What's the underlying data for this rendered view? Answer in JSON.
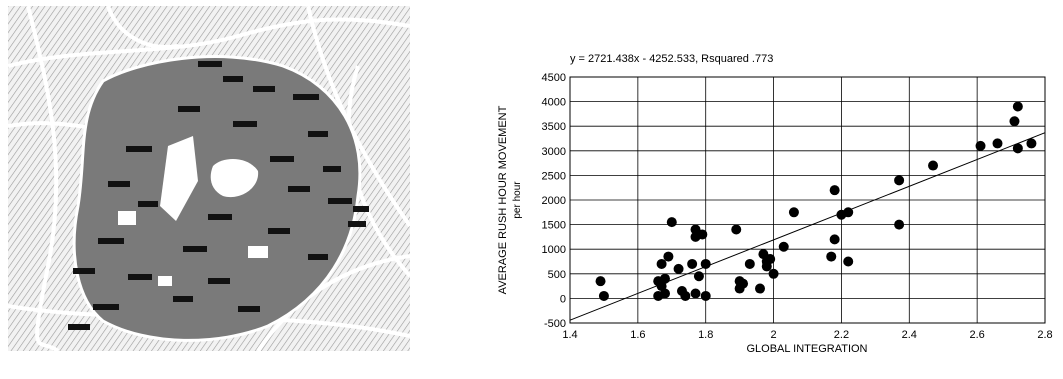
{
  "map": {
    "figure_name": "street network map",
    "labels": [
      "x",
      "x",
      "x",
      "x",
      "x",
      "x",
      "x",
      "x"
    ]
  },
  "chart_data": {
    "type": "scatter",
    "title": "y = 2721.438x - 4252.533, Rsquared .773",
    "xlabel": "GLOBAL INTEGRATION",
    "ylabel": "AVERAGE RUSH HOUR MOVEMENT",
    "ylabel_sub": "per hour",
    "xlim": [
      1.4,
      2.8
    ],
    "ylim": [
      -500,
      4500
    ],
    "xticks": [
      1.4,
      1.6,
      1.8,
      2,
      2.2,
      2.4,
      2.6,
      2.8
    ],
    "yticks": [
      -500,
      0,
      500,
      1000,
      1500,
      2000,
      2500,
      3000,
      3500,
      4000,
      4500
    ],
    "grid": true,
    "trendline": {
      "slope": 2721.438,
      "intercept": -4252.533
    },
    "points": [
      [
        1.49,
        350
      ],
      [
        1.5,
        50
      ],
      [
        1.66,
        350
      ],
      [
        1.66,
        50
      ],
      [
        1.67,
        250
      ],
      [
        1.67,
        700
      ],
      [
        1.68,
        100
      ],
      [
        1.68,
        400
      ],
      [
        1.69,
        850
      ],
      [
        1.7,
        1550
      ],
      [
        1.72,
        600
      ],
      [
        1.73,
        150
      ],
      [
        1.74,
        50
      ],
      [
        1.76,
        700
      ],
      [
        1.77,
        1250
      ],
      [
        1.77,
        1400
      ],
      [
        1.77,
        100
      ],
      [
        1.78,
        450
      ],
      [
        1.79,
        1300
      ],
      [
        1.8,
        700
      ],
      [
        1.8,
        50
      ],
      [
        1.89,
        1400
      ],
      [
        1.9,
        350
      ],
      [
        1.9,
        200
      ],
      [
        1.91,
        300
      ],
      [
        1.93,
        700
      ],
      [
        1.96,
        200
      ],
      [
        1.97,
        900
      ],
      [
        1.98,
        650
      ],
      [
        1.98,
        750
      ],
      [
        1.99,
        800
      ],
      [
        2.0,
        500
      ],
      [
        2.03,
        1050
      ],
      [
        2.06,
        1750
      ],
      [
        2.17,
        850
      ],
      [
        2.18,
        2200
      ],
      [
        2.18,
        1200
      ],
      [
        2.2,
        1700
      ],
      [
        2.22,
        1750
      ],
      [
        2.22,
        750
      ],
      [
        2.37,
        2400
      ],
      [
        2.37,
        1500
      ],
      [
        2.47,
        2700
      ],
      [
        2.61,
        3100
      ],
      [
        2.66,
        3150
      ],
      [
        2.71,
        3600
      ],
      [
        2.72,
        3900
      ],
      [
        2.72,
        3050
      ],
      [
        2.76,
        3150
      ]
    ]
  }
}
